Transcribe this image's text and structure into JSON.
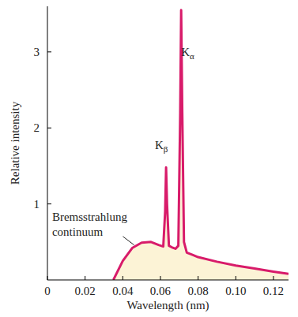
{
  "chart_data": {
    "type": "line",
    "x_label": "Wavelength (nm)",
    "y_label": "Relative intensity",
    "x": [
      0.035,
      0.04,
      0.045,
      0.05,
      0.055,
      0.059,
      0.0615,
      0.0625,
      0.063,
      0.0635,
      0.0645,
      0.066,
      0.068,
      0.0695,
      0.0705,
      0.071,
      0.0716,
      0.0725,
      0.074,
      0.077,
      0.08,
      0.09,
      0.1,
      0.11,
      0.12,
      0.128
    ],
    "series": [
      {
        "color": "#d81b6a",
        "values": [
          0,
          0.25,
          0.42,
          0.49,
          0.5,
          0.46,
          0.44,
          0.9,
          1.48,
          1.0,
          0.45,
          0.43,
          0.41,
          0.45,
          2.2,
          3.55,
          2.2,
          0.5,
          0.36,
          0.33,
          0.3,
          0.24,
          0.19,
          0.15,
          0.11,
          0.08
        ]
      }
    ],
    "xlim": [
      0,
      0.128
    ],
    "ylim": [
      0,
      3.6
    ],
    "xticks": [
      0,
      0.02,
      0.04,
      0.06,
      0.08,
      {
        "value": 0.1,
        "label": "0.10"
      },
      0.12
    ],
    "yticks": [
      1,
      2,
      3
    ],
    "annotations": [
      {
        "text": "Kα",
        "x": 0.0745,
        "y": 2.95
      },
      {
        "text": "Kβ",
        "x": 0.0605,
        "y": 1.72
      },
      {
        "text": "Bremsstrahlung continuum",
        "x": 0.0025,
        "y": 0.78,
        "point": [
          0.046,
          0.46
        ]
      }
    ]
  }
}
